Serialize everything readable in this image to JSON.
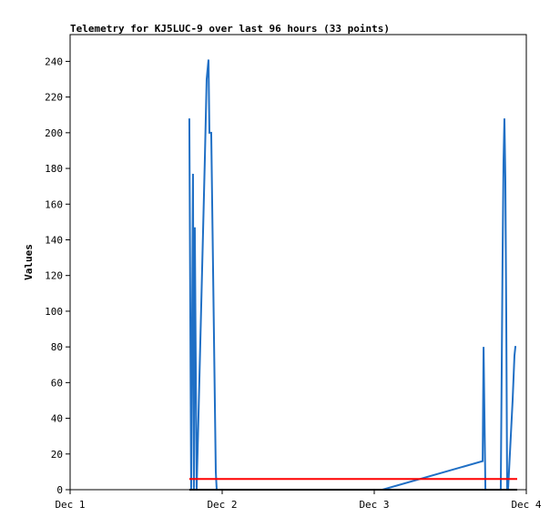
{
  "chart_data": {
    "type": "line",
    "title": "Telemetry for KJ5LUC-9 over last 96 hours (33 points)",
    "ylabel": "Values",
    "xlim": [
      1,
      4
    ],
    "xticks": [
      {
        "value": 1,
        "label": "Dec 1"
      },
      {
        "value": 2,
        "label": "Dec 2"
      },
      {
        "value": 3,
        "label": "Dec 3"
      },
      {
        "value": 4,
        "label": "Dec 4"
      }
    ],
    "ylim": [
      0,
      255
    ],
    "yticks": [
      0,
      20,
      40,
      60,
      80,
      100,
      120,
      140,
      160,
      180,
      200,
      220,
      240
    ],
    "grid": false,
    "series": [
      {
        "color": "#1f6fc5",
        "x": [
          1.784,
          1.79,
          1.796,
          1.808,
          1.814,
          1.82,
          1.832,
          1.838,
          1.886,
          1.898,
          1.91,
          1.916,
          1.928,
          1.958,
          1.964,
          3.054,
          3.713,
          3.719,
          3.725,
          3.731,
          3.832,
          3.844,
          3.85,
          3.856,
          3.862,
          3.868,
          3.874,
          3.88,
          3.892,
          3.91,
          3.922,
          3.928,
          3.934
        ],
        "values": [
          208,
          105,
          0,
          177,
          0,
          147,
          0,
          20,
          185,
          230,
          241,
          200,
          200,
          10,
          0,
          0,
          16,
          80,
          40,
          0,
          0,
          130,
          183,
          208,
          175,
          100,
          0,
          0,
          20,
          50,
          75,
          80,
          80
        ]
      },
      {
        "color": "#ff0000",
        "x": [
          1.784,
          3.94
        ],
        "values": [
          6,
          6
        ]
      },
      {
        "color": "#000000",
        "x": [
          1.784,
          3.94
        ],
        "values": [
          0,
          0
        ]
      }
    ]
  }
}
